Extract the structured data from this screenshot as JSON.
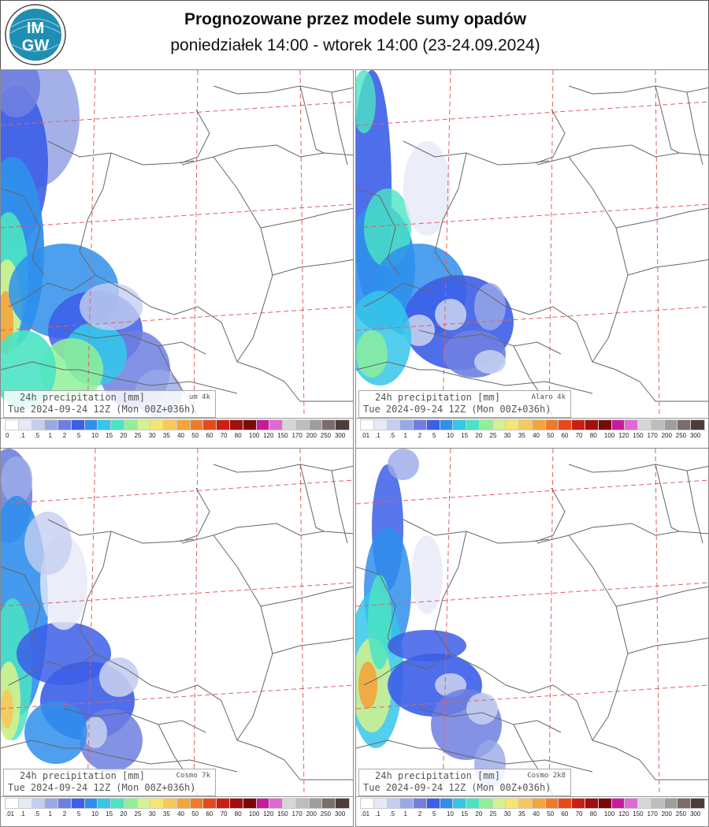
{
  "header": {
    "logo_text_top": "IM",
    "logo_text_bottom": "GW",
    "title": "Prognozowane przez modele sumy opadów",
    "subtitle": "poniedziałek 14:00 - wtorek 14:00 (23-24.09.2024)"
  },
  "panels": [
    {
      "precip_label": "24h precipitation  [mm]",
      "model": "um 4k",
      "valid": "Tue 2024-09-24 12Z (Mon 00Z+036h)",
      "first_tick": "0"
    },
    {
      "precip_label": "24h precipitation  [mm]",
      "model": "Alaro 4k",
      "valid": "Tue 2024-09-24 12Z (Mon 00Z+036h)",
      "first_tick": ".01"
    },
    {
      "precip_label": "24h precipitation  [mm]",
      "model": "Cosmo 7k",
      "valid": "Tue 2024-09-24 12Z (Mon 00Z+036h)",
      "first_tick": ".01"
    },
    {
      "precip_label": "24h precipitation  [mm]",
      "model": "Cosmo 2k8",
      "valid": "Tue 2024-09-24 12Z (Mon 00Z+036h)",
      "first_tick": ".01"
    }
  ],
  "scale": {
    "ticks": [
      ".1",
      ".5",
      "1",
      "2",
      "5",
      "10",
      "15",
      "20",
      "25",
      "30",
      "35",
      "40",
      "50",
      "60",
      "70",
      "80",
      "100",
      "120",
      "150",
      "170",
      "200",
      "250",
      "300"
    ],
    "colors": [
      "#ffffff",
      "#e6eaf7",
      "#c4cef0",
      "#9aa9e6",
      "#6f7fe0",
      "#3c5ee8",
      "#2f8fec",
      "#35c6e9",
      "#4be3c4",
      "#8ff098",
      "#d4f28e",
      "#f6e56e",
      "#f7c85a",
      "#f4a43c",
      "#ef7b2a",
      "#e64a1c",
      "#cc1f14",
      "#a30e0e",
      "#7a0808",
      "#c81a9c",
      "#e06ad3",
      "#d6d6d6",
      "#bdbdbd",
      "#9e9e9e",
      "#7a6d6a",
      "#4d3d3a"
    ]
  },
  "colors": {
    "logo_blue": "#1e8fb3",
    "border_line": "#666666",
    "grid_line": "#e06060"
  }
}
